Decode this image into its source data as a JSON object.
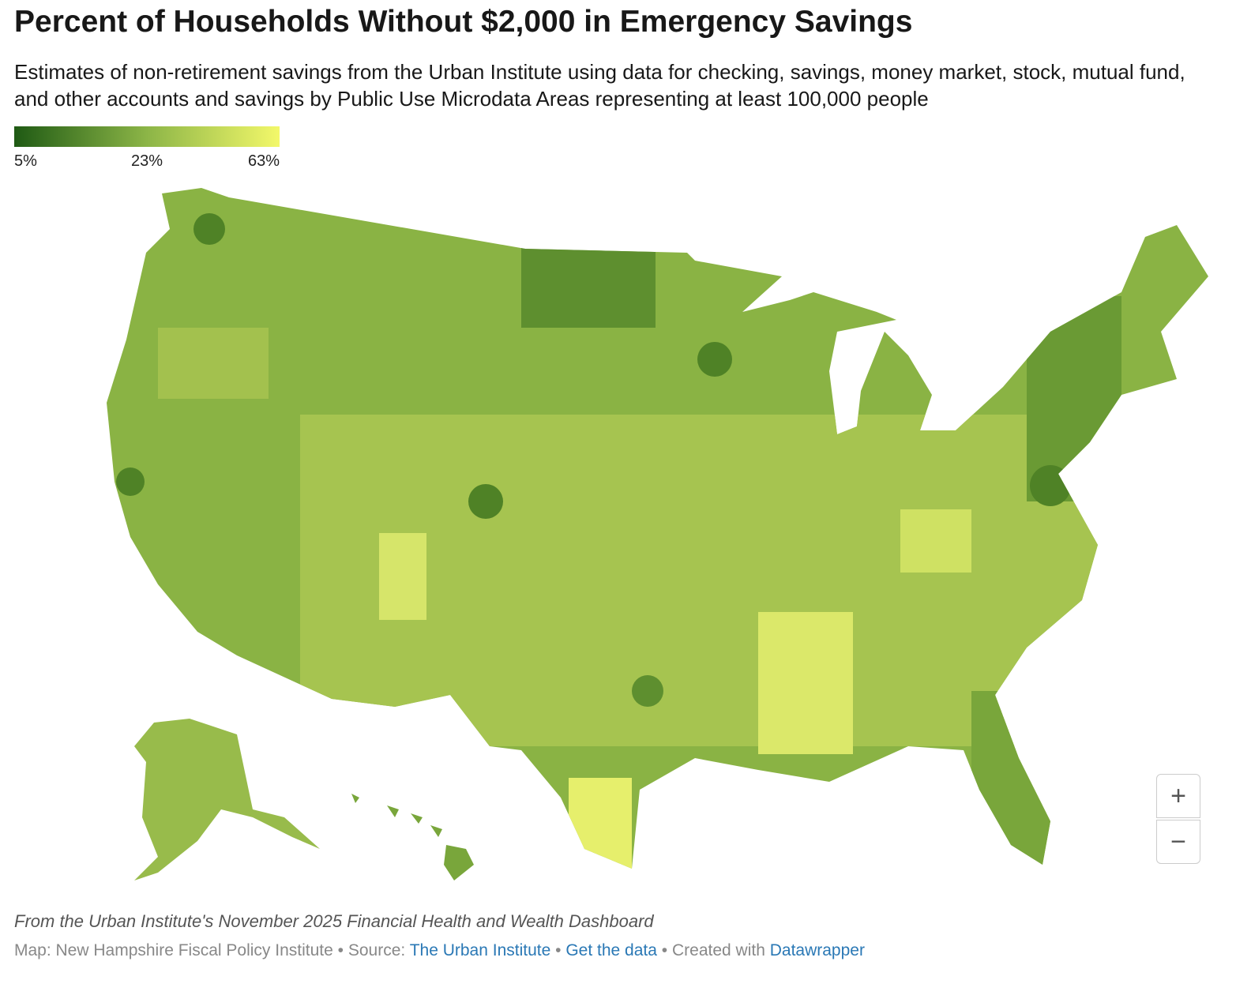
{
  "header": {
    "title": "Percent of Households Without $2,000 in Emergency Savings",
    "subtitle": "Estimates of non-retirement savings from the Urban Institute using data for checking, savings, money market, stock, mutual fund, and other accounts and savings by Public Use Microdata Areas representing at least 100,000 people"
  },
  "legend": {
    "stops": [
      {
        "value": 5,
        "label": "5%",
        "color": "#1f5a14"
      },
      {
        "value": 23,
        "label": "23%",
        "color": "#8cb547"
      },
      {
        "value": 63,
        "label": "63%",
        "color": "#f3f86a"
      }
    ]
  },
  "controls": {
    "zoom_in": "+",
    "zoom_out": "−"
  },
  "footer": {
    "notes": "From the Urban Institute's November 2025 Financial Health and Wealth Dashboard",
    "map_credit": "Map: New Hampshire Fiscal Policy Institute",
    "separator": "•",
    "source_label": "Source:",
    "source": "The Urban Institute",
    "get_data": "Get the data",
    "created_with": "Created with",
    "tool": "Datawrapper"
  }
}
